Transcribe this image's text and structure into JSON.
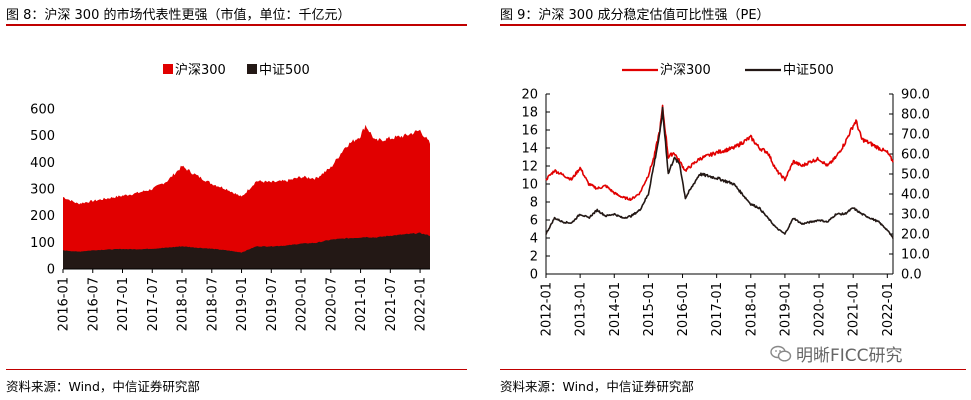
{
  "left_panel": {
    "title": "图 8：沪深 300 的市场代表性更强（市值，单位：千亿元）",
    "source": "资料来源：Wind，中信证券研究部"
  },
  "right_panel": {
    "title": "图 9：沪深 300 成分稳定估值可比性强（PE）",
    "source": "资料来源：Wind，中信证券研究部"
  },
  "watermark": {
    "text": "明晰FICC研究",
    "icon": "wechat-icon"
  },
  "chart_data": [
    {
      "type": "area",
      "stacked": false,
      "title": "",
      "xlabel": "",
      "ylabel": "",
      "ylim": [
        0,
        600
      ],
      "yticks": [
        0,
        100,
        200,
        300,
        400,
        500,
        600
      ],
      "xticks": [
        "2016-01",
        "2016-07",
        "2017-01",
        "2017-07",
        "2018-01",
        "2018-07",
        "2019-01",
        "2019-07",
        "2020-01",
        "2020-07",
        "2021-01",
        "2021-07",
        "2022-01"
      ],
      "legend_position": "top-center",
      "grid": false,
      "x": [
        "2016-01",
        "2016-04",
        "2016-07",
        "2016-10",
        "2017-01",
        "2017-04",
        "2017-07",
        "2017-10",
        "2018-01",
        "2018-04",
        "2018-07",
        "2018-10",
        "2019-01",
        "2019-04",
        "2019-07",
        "2019-10",
        "2020-01",
        "2020-04",
        "2020-07",
        "2020-10",
        "2021-01",
        "2021-02",
        "2021-04",
        "2021-07",
        "2021-10",
        "2022-01",
        "2022-03"
      ],
      "series": [
        {
          "name": "沪深300",
          "color": "#e10000",
          "values": [
            270,
            245,
            255,
            265,
            275,
            285,
            300,
            330,
            385,
            350,
            320,
            300,
            270,
            330,
            325,
            330,
            345,
            340,
            380,
            460,
            500,
            540,
            480,
            490,
            500,
            520,
            470
          ]
        },
        {
          "name": "中证500",
          "color": "#231815",
          "values": [
            70,
            65,
            70,
            73,
            75,
            74,
            76,
            80,
            85,
            80,
            76,
            70,
            62,
            85,
            85,
            88,
            95,
            98,
            110,
            115,
            118,
            120,
            118,
            125,
            130,
            135,
            125
          ]
        }
      ]
    },
    {
      "type": "line",
      "title": "",
      "xlabel": "",
      "ylabel": "",
      "ylim": [
        0,
        20
      ],
      "yticks": [
        0,
        2,
        4,
        6,
        8,
        10,
        12,
        14,
        16,
        18,
        20
      ],
      "y2lim": [
        0,
        90
      ],
      "y2ticks": [
        "0.0",
        "10.0",
        "20.0",
        "30.0",
        "40.0",
        "50.0",
        "60.0",
        "70.0",
        "80.0",
        "90.0"
      ],
      "xticks": [
        "2012-01",
        "2013-01",
        "2014-01",
        "2015-01",
        "2016-01",
        "2017-01",
        "2018-01",
        "2019-01",
        "2020-01",
        "2021-01",
        "2022-01"
      ],
      "legend_position": "top-center",
      "grid": false,
      "x": [
        "2012-01",
        "2012-04",
        "2012-07",
        "2012-10",
        "2013-01",
        "2013-04",
        "2013-07",
        "2013-10",
        "2014-01",
        "2014-04",
        "2014-07",
        "2014-10",
        "2015-01",
        "2015-03",
        "2015-05",
        "2015-06",
        "2015-08",
        "2015-10",
        "2015-12",
        "2016-02",
        "2016-07",
        "2017-01",
        "2017-07",
        "2018-01",
        "2018-04",
        "2018-07",
        "2018-10",
        "2019-01",
        "2019-04",
        "2019-07",
        "2019-10",
        "2020-01",
        "2020-04",
        "2020-07",
        "2020-10",
        "2021-01",
        "2021-02",
        "2021-04",
        "2021-07",
        "2021-10",
        "2022-01",
        "2022-03"
      ],
      "series": [
        {
          "name": "沪深300",
          "axis": "left",
          "color": "#e10000",
          "values": [
            10.5,
            11.5,
            11.0,
            10.5,
            11.8,
            10.0,
            9.5,
            9.8,
            9.0,
            8.5,
            8.3,
            9.0,
            11.0,
            13.0,
            16.0,
            18.5,
            13.0,
            13.5,
            12.5,
            11.5,
            12.8,
            13.5,
            14.0,
            15.2,
            14.0,
            13.5,
            11.5,
            10.5,
            12.5,
            12.0,
            12.5,
            12.8,
            12.0,
            13.0,
            14.5,
            16.5,
            17.0,
            15.0,
            14.5,
            14.0,
            13.5,
            12.5
          ]
        },
        {
          "name": "中证500",
          "axis": "right",
          "color": "#231815",
          "values": [
            20.0,
            28.0,
            26.0,
            25.5,
            30.0,
            28.0,
            32.0,
            29.0,
            30.0,
            28.0,
            29.0,
            32.0,
            40.0,
            55.0,
            70.0,
            82.0,
            50.0,
            58.0,
            55.0,
            38.0,
            50.0,
            48.0,
            45.0,
            35.0,
            33.0,
            28.0,
            23.0,
            20.0,
            28.0,
            25.0,
            26.0,
            27.0,
            26.0,
            30.0,
            30.0,
            33.0,
            32.0,
            30.0,
            28.0,
            26.0,
            22.0,
            18.0
          ]
        }
      ]
    }
  ]
}
